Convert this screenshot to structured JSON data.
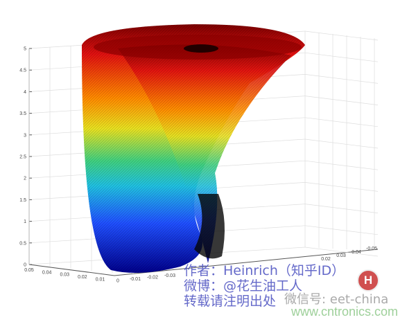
{
  "chart_data": {
    "type": "surface3d",
    "title": "",
    "zlim": [
      0,
      5
    ],
    "z_ticks": [
      "0",
      "0.5",
      "1",
      "1.5",
      "2",
      "2.5",
      "3",
      "3.5",
      "4",
      "4.5",
      "5"
    ],
    "x_ticks": [
      "0.05",
      "0.04",
      "0.03",
      "0.02",
      "0.01",
      "0",
      "-0.01",
      "-0.02",
      "-0.03"
    ],
    "y_ticks": [
      "0.02",
      "0.03",
      "0.04",
      "-0.05"
    ],
    "colormap": "jet",
    "grid": true
  },
  "watermark": {
    "line1": "作者：Heinrich（知乎ID）",
    "line2": "微博：@花生油工人",
    "line3": "转载请注明出处",
    "wechat": "微信号: eet-china",
    "site": "www.cntronics.com",
    "logo_letter": "H"
  }
}
